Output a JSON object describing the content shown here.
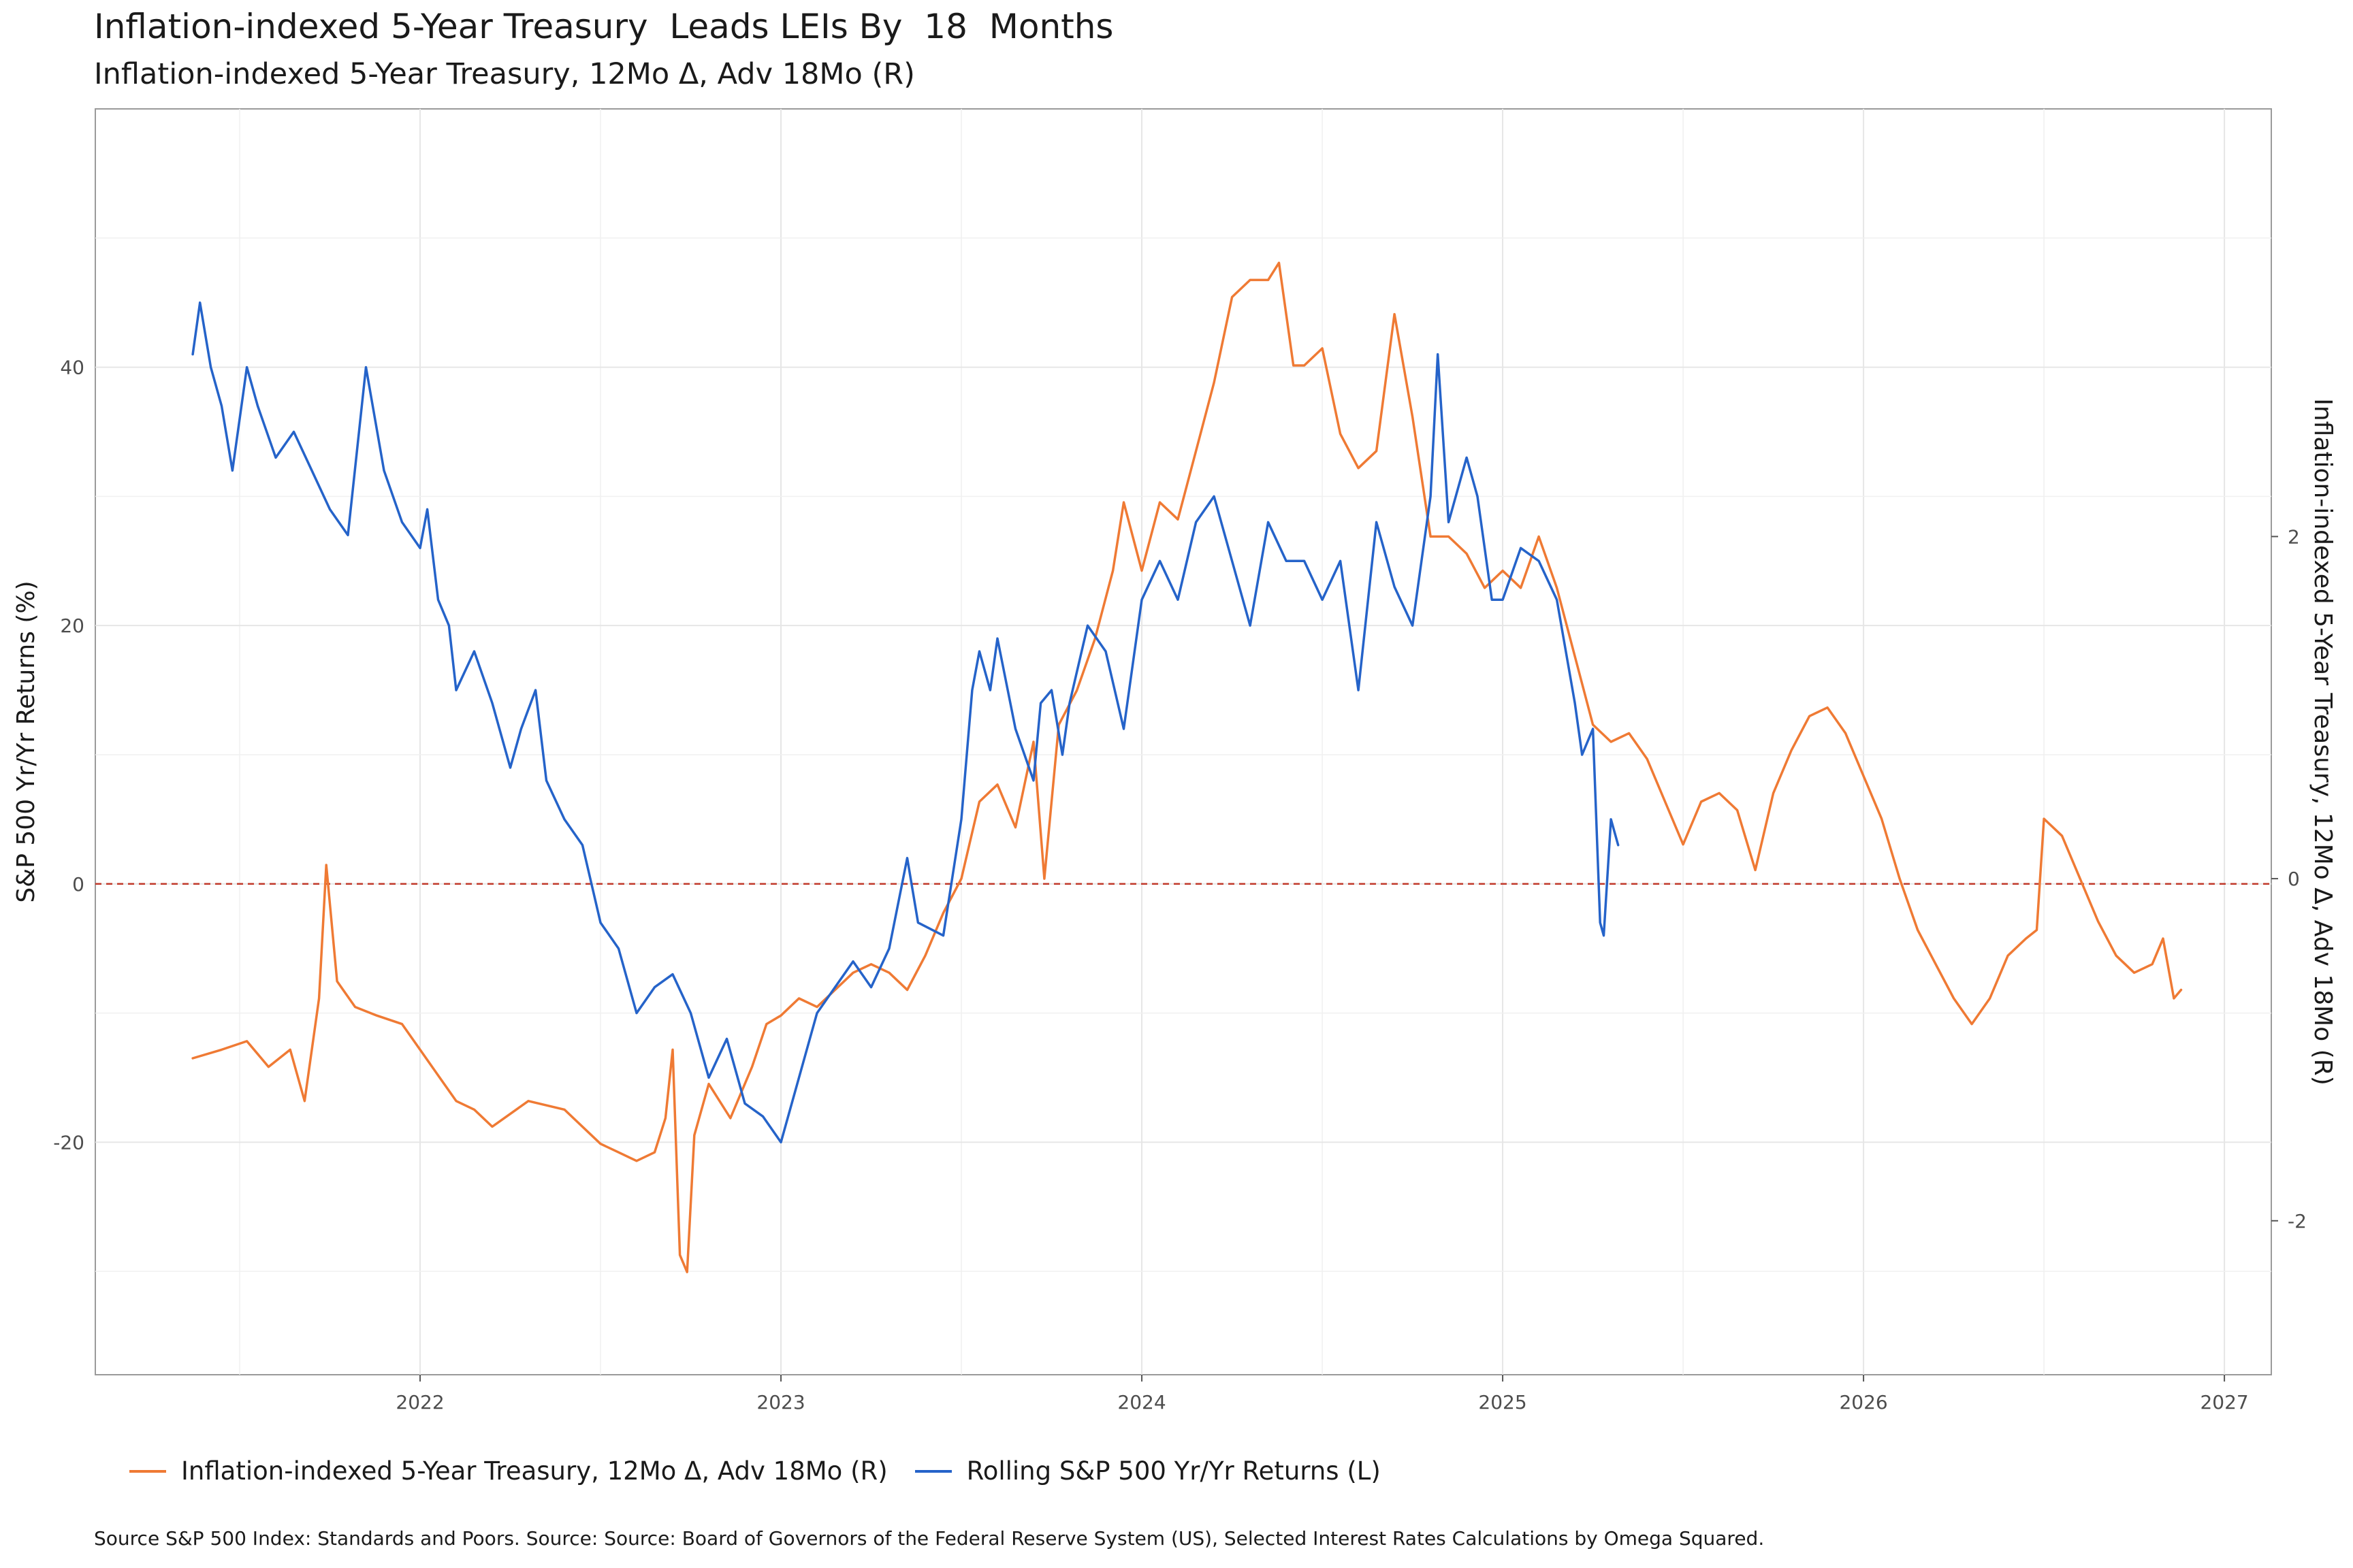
{
  "title": "Inflation-indexed 5-Year Treasury  Leads LEIs By  18  Months",
  "subtitle": "Inflation-indexed 5-Year Treasury, 12Mo Δ, Adv 18Mo (R)",
  "caption": "Source S&P 500 Index: Standards and Poors. Source: Source: Board of Governors of the Federal Reserve System (US), Selected Interest Rates Calculations by Omega Squared.",
  "colors": {
    "orange": "#EF7A34",
    "blue": "#2563C9",
    "zero_line": "#C0392B",
    "grid": "#E6E6E6"
  },
  "chart_data": {
    "type": "line",
    "xlabel": "",
    "ylabel_left": "S&P 500 Yr/Yr Returns (%)",
    "ylabel_right": "Inflation-indexed 5-Year Treasury, 12Mo Δ, Adv 18Mo (R)",
    "x_ticks": [
      "2022",
      "2023",
      "2024",
      "2025",
      "2026",
      "2027"
    ],
    "y_left_ticks": [
      "-20",
      "0",
      "20",
      "40"
    ],
    "y_right_ticks": [
      "-2",
      "0",
      "2"
    ],
    "xlim": [
      2021.1,
      2027.13
    ],
    "ylim_left": [
      -38,
      60
    ],
    "ylim_right": [
      -2.9,
      4.5
    ],
    "zero_line": 0,
    "grid": true,
    "legend_position": "bottom",
    "series": [
      {
        "name": "Inflation-indexed 5-Year Treasury, 12Mo Δ, Adv 18Mo (R)",
        "axis": "right",
        "color": "#EF7A34",
        "points": [
          [
            2021.37,
            -1.05
          ],
          [
            2021.45,
            -1.0
          ],
          [
            2021.52,
            -0.95
          ],
          [
            2021.58,
            -1.1
          ],
          [
            2021.64,
            -1.0
          ],
          [
            2021.68,
            -1.3
          ],
          [
            2021.72,
            -0.7
          ],
          [
            2021.74,
            0.08
          ],
          [
            2021.77,
            -0.6
          ],
          [
            2021.82,
            -0.75
          ],
          [
            2021.88,
            -0.8
          ],
          [
            2021.95,
            -0.85
          ],
          [
            2022.0,
            -1.0
          ],
          [
            2022.05,
            -1.15
          ],
          [
            2022.1,
            -1.3
          ],
          [
            2022.15,
            -1.35
          ],
          [
            2022.2,
            -1.45
          ],
          [
            2022.3,
            -1.3
          ],
          [
            2022.4,
            -1.35
          ],
          [
            2022.5,
            -1.55
          ],
          [
            2022.55,
            -1.6
          ],
          [
            2022.6,
            -1.65
          ],
          [
            2022.65,
            -1.6
          ],
          [
            2022.68,
            -1.4
          ],
          [
            2022.7,
            -1.0
          ],
          [
            2022.72,
            -2.2
          ],
          [
            2022.74,
            -2.3
          ],
          [
            2022.76,
            -1.5
          ],
          [
            2022.8,
            -1.2
          ],
          [
            2022.86,
            -1.4
          ],
          [
            2022.92,
            -1.1
          ],
          [
            2022.96,
            -0.85
          ],
          [
            2023.0,
            -0.8
          ],
          [
            2023.05,
            -0.7
          ],
          [
            2023.1,
            -0.75
          ],
          [
            2023.15,
            -0.65
          ],
          [
            2023.2,
            -0.55
          ],
          [
            2023.25,
            -0.5
          ],
          [
            2023.3,
            -0.55
          ],
          [
            2023.35,
            -0.65
          ],
          [
            2023.4,
            -0.45
          ],
          [
            2023.45,
            -0.2
          ],
          [
            2023.5,
            0.0
          ],
          [
            2023.55,
            0.45
          ],
          [
            2023.6,
            0.55
          ],
          [
            2023.65,
            0.3
          ],
          [
            2023.7,
            0.8
          ],
          [
            2023.73,
            0.0
          ],
          [
            2023.77,
            0.9
          ],
          [
            2023.82,
            1.1
          ],
          [
            2023.87,
            1.4
          ],
          [
            2023.92,
            1.8
          ],
          [
            2023.95,
            2.2
          ],
          [
            2024.0,
            1.8
          ],
          [
            2024.05,
            2.2
          ],
          [
            2024.1,
            2.1
          ],
          [
            2024.15,
            2.5
          ],
          [
            2024.2,
            2.9
          ],
          [
            2024.25,
            3.4
          ],
          [
            2024.3,
            3.5
          ],
          [
            2024.35,
            3.5
          ],
          [
            2024.38,
            3.6
          ],
          [
            2024.42,
            3.0
          ],
          [
            2024.45,
            3.0
          ],
          [
            2024.5,
            3.1
          ],
          [
            2024.55,
            2.6
          ],
          [
            2024.6,
            2.4
          ],
          [
            2024.65,
            2.5
          ],
          [
            2024.7,
            3.3
          ],
          [
            2024.75,
            2.7
          ],
          [
            2024.8,
            2.0
          ],
          [
            2024.85,
            2.0
          ],
          [
            2024.9,
            1.9
          ],
          [
            2024.95,
            1.7
          ],
          [
            2025.0,
            1.8
          ],
          [
            2025.05,
            1.7
          ],
          [
            2025.1,
            2.0
          ],
          [
            2025.15,
            1.7
          ],
          [
            2025.2,
            1.3
          ],
          [
            2025.25,
            0.9
          ],
          [
            2025.3,
            0.8
          ],
          [
            2025.35,
            0.85
          ],
          [
            2025.4,
            0.7
          ],
          [
            2025.45,
            0.45
          ],
          [
            2025.5,
            0.2
          ],
          [
            2025.55,
            0.45
          ],
          [
            2025.6,
            0.5
          ],
          [
            2025.65,
            0.4
          ],
          [
            2025.7,
            0.05
          ],
          [
            2025.75,
            0.5
          ],
          [
            2025.8,
            0.75
          ],
          [
            2025.85,
            0.95
          ],
          [
            2025.9,
            1.0
          ],
          [
            2025.95,
            0.85
          ],
          [
            2026.0,
            0.6
          ],
          [
            2026.05,
            0.35
          ],
          [
            2026.1,
            0.0
          ],
          [
            2026.15,
            -0.3
          ],
          [
            2026.2,
            -0.5
          ],
          [
            2026.25,
            -0.7
          ],
          [
            2026.3,
            -0.85
          ],
          [
            2026.35,
            -0.7
          ],
          [
            2026.4,
            -0.45
          ],
          [
            2026.45,
            -0.35
          ],
          [
            2026.48,
            -0.3
          ],
          [
            2026.5,
            0.35
          ],
          [
            2026.55,
            0.25
          ],
          [
            2026.6,
            0.0
          ],
          [
            2026.65,
            -0.25
          ],
          [
            2026.7,
            -0.45
          ],
          [
            2026.75,
            -0.55
          ],
          [
            2026.8,
            -0.5
          ],
          [
            2026.83,
            -0.35
          ],
          [
            2026.86,
            -0.7
          ],
          [
            2026.88,
            -0.65
          ]
        ]
      },
      {
        "name": "Rolling S&P 500 Yr/Yr Returns (L)",
        "axis": "left",
        "color": "#2563C9",
        "points": [
          [
            2021.37,
            41
          ],
          [
            2021.39,
            45
          ],
          [
            2021.42,
            40
          ],
          [
            2021.45,
            37
          ],
          [
            2021.48,
            32
          ],
          [
            2021.52,
            40
          ],
          [
            2021.55,
            37
          ],
          [
            2021.6,
            33
          ],
          [
            2021.65,
            35
          ],
          [
            2021.7,
            32
          ],
          [
            2021.75,
            29
          ],
          [
            2021.8,
            27
          ],
          [
            2021.85,
            40
          ],
          [
            2021.9,
            32
          ],
          [
            2021.95,
            28
          ],
          [
            2022.0,
            26
          ],
          [
            2022.02,
            29
          ],
          [
            2022.05,
            22
          ],
          [
            2022.08,
            20
          ],
          [
            2022.1,
            15
          ],
          [
            2022.15,
            18
          ],
          [
            2022.2,
            14
          ],
          [
            2022.25,
            9
          ],
          [
            2022.28,
            12
          ],
          [
            2022.32,
            15
          ],
          [
            2022.35,
            8
          ],
          [
            2022.4,
            5
          ],
          [
            2022.45,
            3
          ],
          [
            2022.5,
            -3
          ],
          [
            2022.55,
            -5
          ],
          [
            2022.6,
            -10
          ],
          [
            2022.65,
            -8
          ],
          [
            2022.7,
            -7
          ],
          [
            2022.75,
            -10
          ],
          [
            2022.8,
            -15
          ],
          [
            2022.85,
            -12
          ],
          [
            2022.9,
            -17
          ],
          [
            2022.95,
            -18
          ],
          [
            2023.0,
            -20
          ],
          [
            2023.05,
            -15
          ],
          [
            2023.1,
            -10
          ],
          [
            2023.15,
            -8
          ],
          [
            2023.2,
            -6
          ],
          [
            2023.25,
            -8
          ],
          [
            2023.3,
            -5
          ],
          [
            2023.35,
            2
          ],
          [
            2023.38,
            -3
          ],
          [
            2023.45,
            -4
          ],
          [
            2023.5,
            5
          ],
          [
            2023.53,
            15
          ],
          [
            2023.55,
            18
          ],
          [
            2023.58,
            15
          ],
          [
            2023.6,
            19
          ],
          [
            2023.65,
            12
          ],
          [
            2023.7,
            8
          ],
          [
            2023.72,
            14
          ],
          [
            2023.75,
            15
          ],
          [
            2023.78,
            10
          ],
          [
            2023.8,
            14
          ],
          [
            2023.85,
            20
          ],
          [
            2023.9,
            18
          ],
          [
            2023.95,
            12
          ],
          [
            2024.0,
            22
          ],
          [
            2024.05,
            25
          ],
          [
            2024.1,
            22
          ],
          [
            2024.15,
            28
          ],
          [
            2024.2,
            30
          ],
          [
            2024.25,
            25
          ],
          [
            2024.3,
            20
          ],
          [
            2024.35,
            28
          ],
          [
            2024.4,
            25
          ],
          [
            2024.45,
            25
          ],
          [
            2024.5,
            22
          ],
          [
            2024.55,
            25
          ],
          [
            2024.6,
            15
          ],
          [
            2024.65,
            28
          ],
          [
            2024.7,
            23
          ],
          [
            2024.75,
            20
          ],
          [
            2024.8,
            30
          ],
          [
            2024.82,
            41
          ],
          [
            2024.85,
            28
          ],
          [
            2024.9,
            33
          ],
          [
            2024.93,
            30
          ],
          [
            2024.97,
            22
          ],
          [
            2025.0,
            22
          ],
          [
            2025.05,
            26
          ],
          [
            2025.1,
            25
          ],
          [
            2025.15,
            22
          ],
          [
            2025.2,
            14
          ],
          [
            2025.22,
            10
          ],
          [
            2025.25,
            12
          ],
          [
            2025.27,
            -3
          ],
          [
            2025.28,
            -4
          ],
          [
            2025.3,
            5
          ],
          [
            2025.32,
            3
          ]
        ]
      }
    ]
  }
}
